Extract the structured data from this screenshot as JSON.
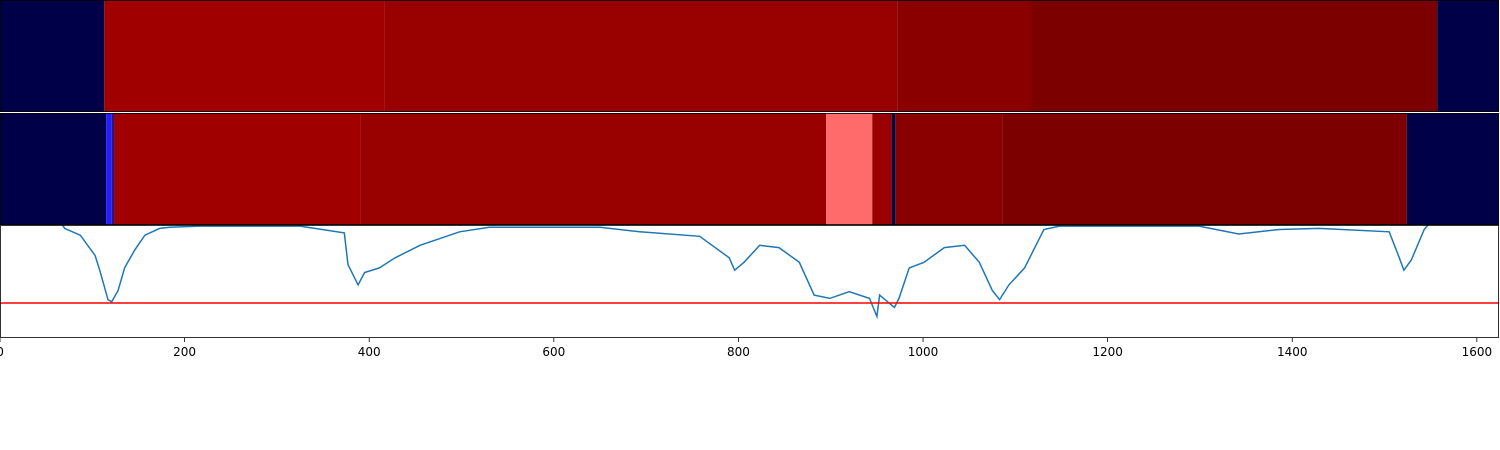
{
  "chart_data": [
    {
      "type": "band",
      "xlim": [
        0,
        1624
      ],
      "segments": [
        {
          "start": 0,
          "end": 113,
          "color": "#000048"
        },
        {
          "start": 113,
          "end": 417,
          "color": "#a00000"
        },
        {
          "start": 417,
          "end": 972,
          "color": "#990000"
        },
        {
          "start": 972,
          "end": 1117,
          "color": "#8a0000"
        },
        {
          "start": 1117,
          "end": 1557,
          "color": "#7d0000"
        },
        {
          "start": 1557,
          "end": 1624,
          "color": "#000048"
        }
      ]
    },
    {
      "type": "band",
      "xlim": [
        0,
        1624
      ],
      "segments": [
        {
          "start": 0,
          "end": 115,
          "color": "#000048"
        },
        {
          "start": 115,
          "end": 121,
          "color": "#2020ff"
        },
        {
          "start": 121,
          "end": 124,
          "color": "#3a1070"
        },
        {
          "start": 124,
          "end": 391,
          "color": "#a00000"
        },
        {
          "start": 391,
          "end": 895,
          "color": "#990000"
        },
        {
          "start": 895,
          "end": 945,
          "color": "#ff6b6b"
        },
        {
          "start": 945,
          "end": 966,
          "color": "#990000"
        },
        {
          "start": 966,
          "end": 970,
          "color": "#000048"
        },
        {
          "start": 970,
          "end": 1086,
          "color": "#8a0000"
        },
        {
          "start": 1086,
          "end": 1524,
          "color": "#7d0000"
        },
        {
          "start": 1524,
          "end": 1624,
          "color": "#000048"
        }
      ]
    },
    {
      "type": "line",
      "xlim": [
        0,
        1624
      ],
      "ylim": [
        0,
        1
      ],
      "xticks": [
        0,
        200,
        400,
        600,
        800,
        1000,
        1200,
        1400,
        1600
      ],
      "threshold": 0.31,
      "threshold_color": "#ff0000",
      "color": "#1f77b4",
      "x": [
        0,
        65,
        70,
        87,
        103,
        108,
        117,
        121,
        128,
        135,
        146,
        157,
        173,
        184,
        217,
        325,
        341,
        373,
        377,
        388,
        395,
        411,
        428,
        455,
        498,
        530,
        650,
        693,
        758,
        790,
        796,
        806,
        823,
        844,
        866,
        882,
        899,
        920,
        942,
        950,
        953,
        969,
        974,
        985,
        1001,
        1023,
        1045,
        1061,
        1075,
        1083,
        1093,
        1110,
        1131,
        1148,
        1299,
        1342,
        1386,
        1429,
        1505,
        1516,
        1521,
        1529,
        1543,
        1550,
        1624
      ],
      "values": [
        1.04,
        1.04,
        0.97,
        0.91,
        0.73,
        0.6,
        0.34,
        0.32,
        0.42,
        0.62,
        0.78,
        0.91,
        0.97,
        0.98,
        0.99,
        0.99,
        0.97,
        0.93,
        0.65,
        0.47,
        0.58,
        0.62,
        0.71,
        0.82,
        0.94,
        0.98,
        0.98,
        0.94,
        0.9,
        0.71,
        0.6,
        0.67,
        0.82,
        0.8,
        0.67,
        0.38,
        0.35,
        0.41,
        0.35,
        0.19,
        0.38,
        0.27,
        0.35,
        0.62,
        0.67,
        0.8,
        0.82,
        0.67,
        0.42,
        0.34,
        0.47,
        0.62,
        0.96,
        0.99,
        0.99,
        0.92,
        0.96,
        0.97,
        0.94,
        0.71,
        0.6,
        0.69,
        0.96,
        1.03,
        1.04
      ]
    }
  ]
}
